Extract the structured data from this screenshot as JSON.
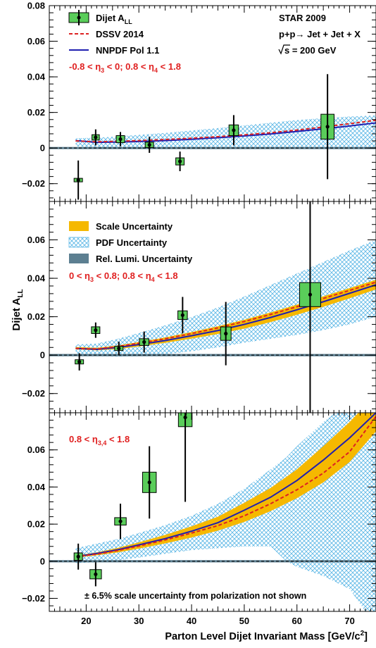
{
  "colors": {
    "data_fill": "#5acd5a",
    "dssv": "#dd2222",
    "nnpdf": "#1f1fb0",
    "scale_band": "#f5b800",
    "pdf_band": "#5fb8e6",
    "lumi_band": "#5c7f91",
    "selection_text": "#e02020"
  },
  "chart_data": [
    {
      "type": "scatter",
      "panel": "top",
      "selection": "-0.8 < η3 < 0; 0.8 < η4 < 1.8",
      "info_lines": [
        "STAR 2009",
        "p+p→ Jet + Jet + X",
        "√s = 200 GeV"
      ],
      "legend": [
        "Dijet A_LL",
        "DSSV 2014",
        "NNPDF Pol 1.1"
      ],
      "xlim": [
        13,
        75
      ],
      "ylim": [
        -0.03,
        0.08
      ],
      "yticks": [
        -0.02,
        0,
        0.02,
        0.04,
        0.06,
        0.08
      ],
      "ytick_labels": [
        "−0.02",
        "0",
        "0.02",
        "0.04",
        "0.06",
        "0.08"
      ],
      "points": [
        {
          "x": 18.5,
          "y": -0.018,
          "err": 0.011,
          "sys_w": 1.6,
          "sys_h": 0.002
        },
        {
          "x": 21.8,
          "y": 0.006,
          "err": 0.0045,
          "sys_w": 1.4,
          "sys_h": 0.003
        },
        {
          "x": 26.5,
          "y": 0.005,
          "err": 0.004,
          "sys_w": 1.6,
          "sys_h": 0.004
        },
        {
          "x": 32.0,
          "y": 0.0018,
          "err": 0.0045,
          "sys_w": 1.6,
          "sys_h": 0.003
        },
        {
          "x": 37.8,
          "y": -0.0075,
          "err": 0.0055,
          "sys_w": 1.6,
          "sys_h": 0.004
        },
        {
          "x": 48.0,
          "y": 0.01,
          "err": 0.0085,
          "sys_w": 1.8,
          "sys_h": 0.006
        },
        {
          "x": 65.8,
          "y": 0.012,
          "err": 0.0295,
          "sys_w": 2.5,
          "sys_h": 0.014
        }
      ],
      "dssv": {
        "x": [
          18,
          22,
          26,
          30,
          35,
          40,
          45,
          50,
          55,
          60,
          65,
          70,
          75
        ],
        "y": [
          0.004,
          0.0035,
          0.0038,
          0.0042,
          0.0048,
          0.0055,
          0.0064,
          0.0074,
          0.0086,
          0.0101,
          0.0118,
          0.0137,
          0.0156
        ]
      },
      "nnpdf": {
        "x": [
          18,
          22,
          26,
          30,
          35,
          40,
          45,
          50,
          55,
          60,
          65,
          70,
          75
        ],
        "y": [
          0.0042,
          0.0032,
          0.0034,
          0.0037,
          0.0042,
          0.0049,
          0.0058,
          0.0068,
          0.0079,
          0.0093,
          0.0108,
          0.0124,
          0.0141
        ]
      },
      "pdf_band": {
        "x": [
          18,
          22,
          26,
          30,
          35,
          40,
          45,
          50,
          55,
          60,
          65,
          70,
          75
        ],
        "lo": [
          0.001,
          0.0002,
          0.0,
          0.0,
          -0.0002,
          -0.0002,
          -0.0002,
          -0.0002,
          -0.0003,
          -0.0004,
          -0.0005,
          -0.0005,
          -0.0005
        ],
        "hi": [
          0.0055,
          0.0058,
          0.0065,
          0.0074,
          0.0085,
          0.0098,
          0.0112,
          0.0127,
          0.0142,
          0.0157,
          0.0168,
          0.0177,
          0.0183
        ]
      },
      "lumi_halfwidth": 0.0006
    },
    {
      "type": "scatter",
      "panel": "middle",
      "selection": "0 < η3 < 0.8; 0.8 < η4 < 1.8",
      "legend": [
        "Scale Uncertainty",
        "PDF Uncertainty",
        "Rel. Lumi. Uncertainty"
      ],
      "ylabel": "Dijet A_LL",
      "xlim": [
        13,
        75
      ],
      "ylim": [
        -0.03,
        0.08
      ],
      "yticks": [
        -0.02,
        0,
        0.02,
        0.04,
        0.06
      ],
      "ytick_labels": [
        "−0.02",
        "0",
        "0.02",
        "0.04",
        "0.06"
      ],
      "points": [
        {
          "x": 18.7,
          "y": -0.0035,
          "err": 0.0045,
          "sys_w": 1.6,
          "sys_h": 0.0022
        },
        {
          "x": 21.8,
          "y": 0.013,
          "err": 0.004,
          "sys_w": 1.6,
          "sys_h": 0.0035
        },
        {
          "x": 26.2,
          "y": 0.0035,
          "err": 0.0035,
          "sys_w": 1.6,
          "sys_h": 0.0022
        },
        {
          "x": 31.0,
          "y": 0.0068,
          "err": 0.0055,
          "sys_w": 1.8,
          "sys_h": 0.0035
        },
        {
          "x": 38.3,
          "y": 0.0208,
          "err": 0.0095,
          "sys_w": 1.8,
          "sys_h": 0.0045
        },
        {
          "x": 46.5,
          "y": 0.0112,
          "err": 0.0165,
          "sys_w": 2.0,
          "sys_h": 0.007
        },
        {
          "x": 62.5,
          "y": 0.0315,
          "err": 0.085,
          "sys_w": 4.0,
          "sys_h": 0.0125
        }
      ],
      "dssv": {
        "x": [
          18,
          22,
          26,
          30,
          35,
          40,
          45,
          50,
          55,
          60,
          65,
          70,
          75
        ],
        "y": [
          0.0035,
          0.0032,
          0.0045,
          0.0062,
          0.0085,
          0.0112,
          0.0142,
          0.0175,
          0.0212,
          0.0252,
          0.0295,
          0.0337,
          0.038
        ]
      },
      "nnpdf": {
        "x": [
          18,
          22,
          26,
          30,
          35,
          40,
          45,
          50,
          55,
          60,
          65,
          70,
          75
        ],
        "y": [
          0.0035,
          0.003,
          0.004,
          0.0055,
          0.0076,
          0.0101,
          0.0128,
          0.016,
          0.0196,
          0.0236,
          0.0278,
          0.0322,
          0.0366
        ]
      },
      "scale_band": {
        "x": [
          18,
          22,
          26,
          30,
          35,
          40,
          45,
          50,
          55,
          60,
          65,
          70,
          75
        ],
        "lo": [
          0.003,
          0.0025,
          0.0032,
          0.0045,
          0.0064,
          0.0086,
          0.011,
          0.0138,
          0.0172,
          0.021,
          0.0252,
          0.0296,
          0.0342
        ],
        "hi": [
          0.0042,
          0.0038,
          0.005,
          0.0068,
          0.0092,
          0.012,
          0.015,
          0.0184,
          0.0222,
          0.0263,
          0.0306,
          0.0349,
          0.0392
        ]
      },
      "pdf_band": {
        "x": [
          18,
          22,
          26,
          30,
          35,
          40,
          45,
          50,
          55,
          60,
          65,
          70,
          75
        ],
        "lo": [
          0.001,
          -0.0005,
          -0.0008,
          -0.0005,
          0.0005,
          0.002,
          0.004,
          0.0065,
          0.0085,
          0.0105,
          0.013,
          0.016,
          0.02
        ],
        "hi": [
          0.0055,
          0.006,
          0.0085,
          0.0115,
          0.0155,
          0.0198,
          0.0248,
          0.0305,
          0.0365,
          0.0425,
          0.0485,
          0.0545,
          0.06
        ]
      },
      "lumi_halfwidth": 0.0006
    },
    {
      "type": "scatter",
      "panel": "bottom",
      "selection": "0.8 < η3,4 < 1.8",
      "note": "± 6.5% scale uncertainty from polarization not shown",
      "xlabel": "Parton Level Dijet Invariant Mass [GeV/c²]",
      "xticks": [
        20,
        30,
        40,
        50,
        60,
        70
      ],
      "xtick_labels": [
        "20",
        "30",
        "40",
        "50",
        "60",
        "70"
      ],
      "xlim": [
        13,
        75
      ],
      "ylim": [
        -0.027,
        0.08
      ],
      "yticks": [
        -0.02,
        0,
        0.02,
        0.04,
        0.06
      ],
      "ytick_labels": [
        "−0.02",
        "0",
        "0.02",
        "0.04",
        "0.06"
      ],
      "points": [
        {
          "x": 18.5,
          "y": 0.0025,
          "err": 0.007,
          "sys_w": 1.6,
          "sys_h": 0.004
        },
        {
          "x": 21.8,
          "y": -0.007,
          "err": 0.0065,
          "sys_w": 2.2,
          "sys_h": 0.005
        },
        {
          "x": 26.5,
          "y": 0.0215,
          "err": 0.0095,
          "sys_w": 2.2,
          "sys_h": 0.004
        },
        {
          "x": 32.0,
          "y": 0.0425,
          "err": 0.0195,
          "sys_w": 2.6,
          "sys_h": 0.011
        },
        {
          "x": 38.8,
          "y": 0.0775,
          "err": 0.0455,
          "sys_w": 2.6,
          "sys_h": 0.01
        }
      ],
      "dssv": {
        "x": [
          18,
          22,
          26,
          30,
          35,
          40,
          45,
          50,
          55,
          60,
          65,
          70,
          75
        ],
        "y": [
          0.0025,
          0.0038,
          0.0058,
          0.0082,
          0.0115,
          0.0152,
          0.0192,
          0.0245,
          0.031,
          0.0385,
          0.0475,
          0.059,
          0.078
        ]
      },
      "nnpdf": {
        "x": [
          18,
          22,
          26,
          30,
          35,
          40,
          45,
          50,
          55,
          60,
          65,
          70,
          75
        ],
        "y": [
          0.0025,
          0.0042,
          0.0062,
          0.0088,
          0.0122,
          0.0162,
          0.0208,
          0.0275,
          0.0345,
          0.0435,
          0.0545,
          0.0665,
          0.08
        ]
      },
      "scale_band": {
        "x": [
          18,
          22,
          26,
          30,
          35,
          40,
          45,
          50,
          55,
          60,
          65,
          70,
          75
        ],
        "lo": [
          0.002,
          0.0032,
          0.0048,
          0.0068,
          0.0096,
          0.0128,
          0.0165,
          0.0212,
          0.027,
          0.034,
          0.0425,
          0.0535,
          0.07
        ],
        "hi": [
          0.003,
          0.0048,
          0.0072,
          0.0102,
          0.0142,
          0.0188,
          0.024,
          0.0315,
          0.0395,
          0.0495,
          0.062,
          0.075,
          0.09
        ]
      },
      "pdf_band": {
        "x": [
          18,
          22,
          26,
          30,
          35,
          40,
          45,
          50,
          55,
          58,
          60,
          65,
          70,
          73,
          75
        ],
        "lo": [
          -0.001,
          -0.0005,
          0.0005,
          0.002,
          0.004,
          0.006,
          0.007,
          0.008,
          0.008,
          0.0,
          -0.003,
          -0.008,
          -0.015,
          -0.027,
          -0.027
        ],
        "hi": [
          0.007,
          0.0095,
          0.012,
          0.0152,
          0.0195,
          0.0245,
          0.031,
          0.039,
          0.0495,
          0.056,
          0.062,
          0.075,
          0.086,
          0.09,
          0.09
        ]
      },
      "lumi_halfwidth": 0.0006
    }
  ]
}
